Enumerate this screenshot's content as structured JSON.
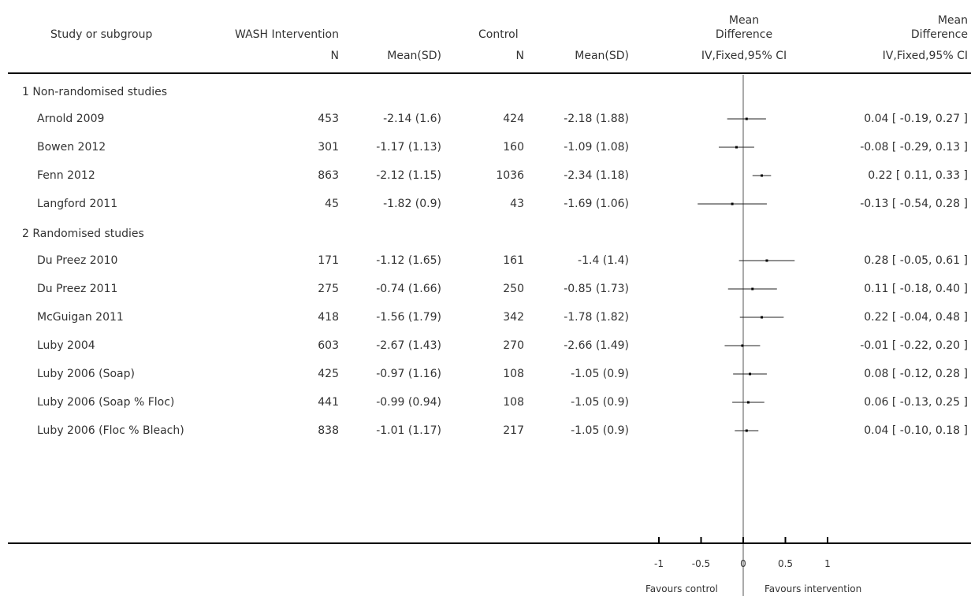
{
  "header": {
    "study_col": "Study or subgroup",
    "intervention_col": "WASH Intervention",
    "control_col": "Control",
    "md_plot_col": [
      "Mean",
      "Difference"
    ],
    "md_value_col": [
      "Mean",
      "Difference"
    ],
    "n_label": "N",
    "mean_sd_label": "Mean(SD)",
    "method_label": "IV,Fixed,95% CI"
  },
  "groups": [
    {
      "label": "1 Non-randomised studies",
      "rows": [
        {
          "study": "Arnold 2009",
          "int_n": "453",
          "int_msd": "-2.14 (1.6)",
          "ctl_n": "424",
          "ctl_msd": "-2.18 (1.88)",
          "ci_text": "0.04 [ -0.19, 0.27 ]"
        },
        {
          "study": "Bowen 2012",
          "int_n": "301",
          "int_msd": "-1.17 (1.13)",
          "ctl_n": "160",
          "ctl_msd": "-1.09 (1.08)",
          "ci_text": "-0.08 [ -0.29, 0.13 ]"
        },
        {
          "study": "Fenn 2012",
          "int_n": "863",
          "int_msd": "-2.12 (1.15)",
          "ctl_n": "1036",
          "ctl_msd": "-2.34 (1.18)",
          "ci_text": "0.22 [ 0.11, 0.33 ]"
        },
        {
          "study": "Langford 2011",
          "int_n": "45",
          "int_msd": "-1.82 (0.9)",
          "ctl_n": "43",
          "ctl_msd": "-1.69 (1.06)",
          "ci_text": "-0.13 [ -0.54, 0.28 ]"
        }
      ]
    },
    {
      "label": "2 Randomised studies",
      "rows": [
        {
          "study": "Du Preez 2010",
          "int_n": "171",
          "int_msd": "-1.12 (1.65)",
          "ctl_n": "161",
          "ctl_msd": "-1.4 (1.4)",
          "ci_text": "0.28 [ -0.05, 0.61 ]"
        },
        {
          "study": "Du Preez 2011",
          "int_n": "275",
          "int_msd": "-0.74 (1.66)",
          "ctl_n": "250",
          "ctl_msd": "-0.85 (1.73)",
          "ci_text": "0.11 [ -0.18, 0.40 ]"
        },
        {
          "study": "McGuigan 2011",
          "int_n": "418",
          "int_msd": "-1.56 (1.79)",
          "ctl_n": "342",
          "ctl_msd": "-1.78 (1.82)",
          "ci_text": "0.22 [ -0.04, 0.48 ]"
        },
        {
          "study": "Luby 2004",
          "int_n": "603",
          "int_msd": "-2.67 (1.43)",
          "ctl_n": "270",
          "ctl_msd": "-2.66 (1.49)",
          "ci_text": "-0.01 [ -0.22, 0.20 ]"
        },
        {
          "study": "Luby 2006 (Soap)",
          "int_n": "425",
          "int_msd": "-0.97 (1.16)",
          "ctl_n": "108",
          "ctl_msd": "-1.05 (0.9)",
          "ci_text": "0.08 [ -0.12, 0.28 ]"
        },
        {
          "study": "Luby 2006 (Soap % Floc)",
          "int_n": "441",
          "int_msd": "-0.99 (0.94)",
          "ctl_n": "108",
          "ctl_msd": "-1.05 (0.9)",
          "ci_text": "0.06 [ -0.13, 0.25 ]"
        },
        {
          "study": "Luby 2006 (Floc % Bleach)",
          "int_n": "838",
          "int_msd": "-1.01 (1.17)",
          "ctl_n": "217",
          "ctl_msd": "-1.05 (0.9)",
          "ci_text": "0.04 [ -0.10, 0.18 ]"
        }
      ]
    }
  ],
  "footer": {
    "favours_left": "Favours control",
    "favours_right": "Favours intervention"
  },
  "chart_data": {
    "type": "forest",
    "xlim": [
      -1,
      1
    ],
    "ticks": [
      -1,
      -0.5,
      0,
      0.5,
      1
    ],
    "tick_labels": [
      "-1",
      "-0.5",
      "0",
      "0.5",
      "1"
    ],
    "reference_line": 0,
    "points": [
      {
        "study": "Arnold 2009",
        "md": 0.04,
        "lo": -0.19,
        "hi": 0.27
      },
      {
        "study": "Bowen 2012",
        "md": -0.08,
        "lo": -0.29,
        "hi": 0.13
      },
      {
        "study": "Fenn 2012",
        "md": 0.22,
        "lo": 0.11,
        "hi": 0.33
      },
      {
        "study": "Langford 2011",
        "md": -0.13,
        "lo": -0.54,
        "hi": 0.28
      },
      {
        "study": "Du Preez 2010",
        "md": 0.28,
        "lo": -0.05,
        "hi": 0.61
      },
      {
        "study": "Du Preez 2011",
        "md": 0.11,
        "lo": -0.18,
        "hi": 0.4
      },
      {
        "study": "McGuigan 2011",
        "md": 0.22,
        "lo": -0.04,
        "hi": 0.48
      },
      {
        "study": "Luby 2004",
        "md": -0.01,
        "lo": -0.22,
        "hi": 0.2
      },
      {
        "study": "Luby 2006 (Soap)",
        "md": 0.08,
        "lo": -0.12,
        "hi": 0.28
      },
      {
        "study": "Luby 2006 (Soap % Floc)",
        "md": 0.06,
        "lo": -0.13,
        "hi": 0.25
      },
      {
        "study": "Luby 2006 (Floc % Bleach)",
        "md": 0.04,
        "lo": -0.1,
        "hi": 0.18
      }
    ]
  }
}
